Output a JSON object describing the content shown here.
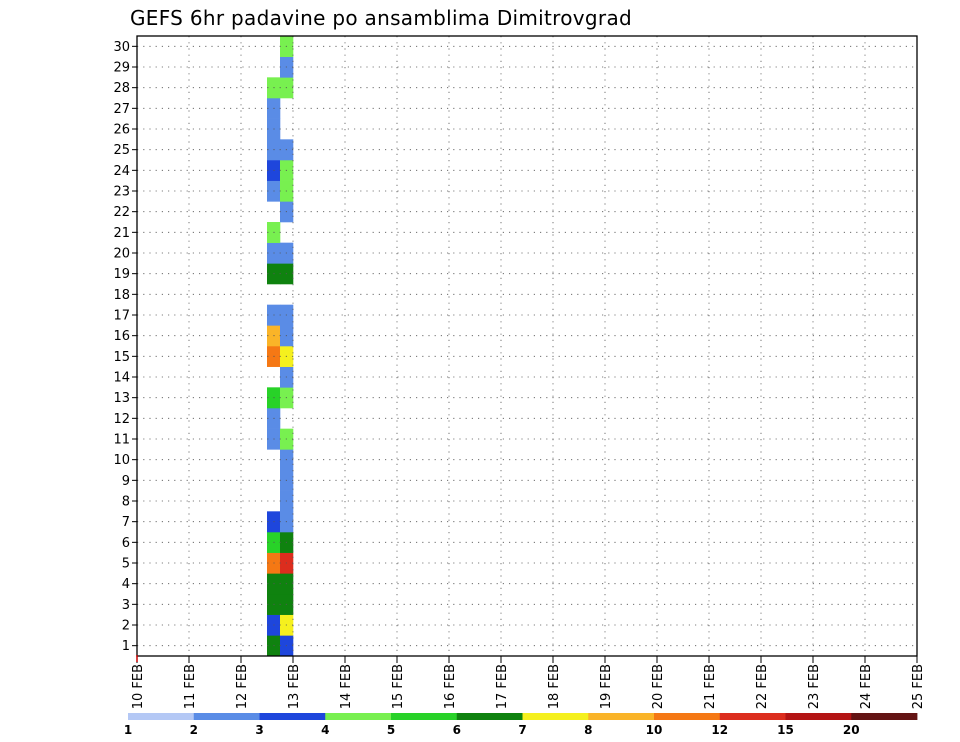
{
  "chart_data": {
    "type": "heatmap",
    "title": "GEFS 6hr padavine po ansamblima Dimitrovgrad",
    "xlabel": "",
    "ylabel": "",
    "x_tick_labels": [
      "10 FEB",
      "11 FEB",
      "12 FEB",
      "13 FEB",
      "14 FEB",
      "15 FEB",
      "16 FEB",
      "17 FEB",
      "18 FEB",
      "19 FEB",
      "20 FEB",
      "21 FEB",
      "22 FEB",
      "23 FEB",
      "24 FEB",
      "25 FEB"
    ],
    "xlim": [
      0,
      60
    ],
    "x_units": "6-hour steps from 10 FEB 00Z",
    "y_tick_labels": [
      "1",
      "2",
      "3",
      "4",
      "5",
      "6",
      "7",
      "8",
      "9",
      "10",
      "11",
      "12",
      "13",
      "14",
      "15",
      "16",
      "17",
      "18",
      "19",
      "20",
      "21",
      "22",
      "23",
      "24",
      "25",
      "26",
      "27",
      "28",
      "29",
      "30"
    ],
    "ylim": [
      0,
      30
    ],
    "y_units": "ensemble member",
    "grid": true,
    "colorbar": {
      "labels": [
        "1",
        "2",
        "3",
        "4",
        "5",
        "6",
        "7",
        "8",
        "10",
        "12",
        "15",
        "20"
      ],
      "colors": [
        "#b4c8f5",
        "#5a8ce6",
        "#1e46dc",
        "#78f050",
        "#28d228",
        "#0f820f",
        "#f5f01e",
        "#fab428",
        "#f57814",
        "#dc2d1e",
        "#b41414",
        "#641414"
      ]
    },
    "cells": [
      [
        10,
        0,
        5
      ],
      [
        10,
        1,
        2
      ],
      [
        10,
        2,
        5
      ],
      [
        10,
        3,
        5
      ],
      [
        10,
        4,
        8
      ],
      [
        10,
        5,
        4
      ],
      [
        10,
        6,
        2
      ],
      [
        10,
        10,
        1
      ],
      [
        10,
        11,
        1
      ],
      [
        10,
        12,
        4
      ],
      [
        10,
        14,
        8
      ],
      [
        10,
        15,
        7
      ],
      [
        10,
        16,
        1
      ],
      [
        10,
        18,
        5
      ],
      [
        10,
        19,
        1
      ],
      [
        10,
        20,
        3
      ],
      [
        10,
        22,
        1
      ],
      [
        10,
        23,
        2
      ],
      [
        10,
        24,
        1
      ],
      [
        10,
        25,
        1
      ],
      [
        10,
        26,
        1
      ],
      [
        10,
        27,
        3
      ],
      [
        11,
        0,
        2
      ],
      [
        11,
        1,
        6
      ],
      [
        11,
        2,
        5
      ],
      [
        11,
        3,
        5
      ],
      [
        11,
        4,
        9
      ],
      [
        11,
        5,
        5
      ],
      [
        11,
        6,
        1
      ],
      [
        11,
        7,
        1
      ],
      [
        11,
        8,
        1
      ],
      [
        11,
        9,
        1
      ],
      [
        11,
        10,
        3
      ],
      [
        11,
        12,
        3
      ],
      [
        11,
        13,
        1
      ],
      [
        11,
        14,
        6
      ],
      [
        11,
        15,
        1
      ],
      [
        11,
        16,
        1
      ],
      [
        11,
        18,
        5
      ],
      [
        11,
        19,
        1
      ],
      [
        11,
        21,
        1
      ],
      [
        11,
        22,
        3
      ],
      [
        11,
        23,
        3
      ],
      [
        11,
        24,
        1
      ],
      [
        11,
        27,
        3
      ],
      [
        11,
        28,
        1
      ],
      [
        11,
        29,
        3
      ]
    ]
  }
}
